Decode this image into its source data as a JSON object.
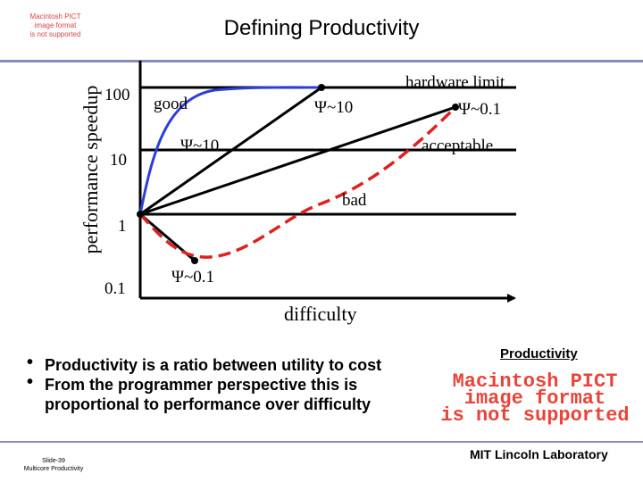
{
  "slide": {
    "title": "Defining Productivity",
    "pict_small": [
      "Macintosh PICT",
      "image format",
      "is not supported"
    ],
    "pict_large": [
      "Macintosh PICT",
      "image format",
      "is not supported"
    ],
    "footer_left": [
      "Slide-39",
      "Multicore Productivity"
    ],
    "footer_right": "MIT Lincoln Laboratory",
    "productivity_label": "Productivity"
  },
  "diagram": {
    "y_axis_label": "performance speedup",
    "x_axis_label": "difficulty",
    "y_ticks": [
      "100",
      "10",
      "1",
      "0.1"
    ],
    "labels": {
      "hardware_limit": "hardware limit",
      "good": "good",
      "psi_10_upper": "Ψ~10",
      "psi_01_upper": "Ψ~0.1",
      "psi_10_lower": "Ψ~10",
      "acceptable": "acceptable",
      "bad": "bad",
      "psi_01_lower": "Ψ~0.1"
    },
    "colors": {
      "good_curve": "#2b3fd6",
      "bad_curve": "#e02020",
      "lines": "#000000"
    }
  },
  "bullets": [
    "Productivity is a ratio between utility to cost",
    "From the programmer perspective this is proportional to performance over difficulty"
  ]
}
